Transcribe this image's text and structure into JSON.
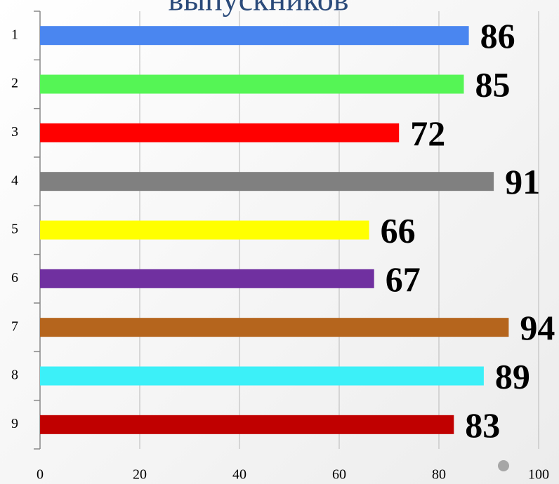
{
  "chart_data": {
    "type": "bar",
    "orientation": "horizontal",
    "title": "выпускников",
    "categories": [
      "1",
      "2",
      "3",
      "4",
      "5",
      "6",
      "7",
      "8",
      "9"
    ],
    "values": [
      86,
      85,
      72,
      91,
      66,
      67,
      94,
      89,
      83
    ],
    "colors": [
      "#4a86f0",
      "#55f555",
      "#ff0000",
      "#808080",
      "#ffff00",
      "#7030a0",
      "#b5651d",
      "#3cf0f8",
      "#c00000"
    ],
    "xlim": [
      0,
      100
    ],
    "xticks": [
      0,
      20,
      40,
      60,
      80,
      100
    ],
    "grid": true
  }
}
